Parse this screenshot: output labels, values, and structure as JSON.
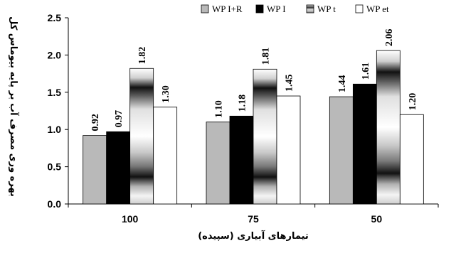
{
  "chart_data": {
    "type": "bar",
    "categories": [
      "100",
      "75",
      "50"
    ],
    "series": [
      {
        "name": "WP I+R",
        "values": [
          0.92,
          1.1,
          1.44
        ],
        "color": "#b9b9b9",
        "style": "solid"
      },
      {
        "name": "WP I",
        "values": [
          0.97,
          1.18,
          1.61
        ],
        "color": "#000000",
        "style": "solid"
      },
      {
        "name": "WP t",
        "values": [
          1.82,
          1.81,
          2.06
        ],
        "color": "#7f7f7f",
        "style": "gradient"
      },
      {
        "name": "WP et",
        "values": [
          1.3,
          1.45,
          1.2
        ],
        "color": "#ffffff",
        "style": "solid"
      }
    ],
    "value_labels": [
      [
        "0.92",
        "1.10",
        "1.44"
      ],
      [
        "0.97",
        "1.18",
        "1.61"
      ],
      [
        "1.82",
        "1.81",
        "2.06"
      ],
      [
        "1.30",
        "1.45",
        "1.20"
      ]
    ],
    "xlabel": "تیمارهای آبیاری (سپیده)",
    "ylabel": "بهره وری مصرف آب بر پایه بیوماس کل",
    "ylim": [
      0,
      2.5
    ],
    "yticks": [
      "0.0",
      "0.5",
      "1.0",
      "1.5",
      "2.0",
      "2.5"
    ],
    "grid": false,
    "legend_position": "top"
  }
}
